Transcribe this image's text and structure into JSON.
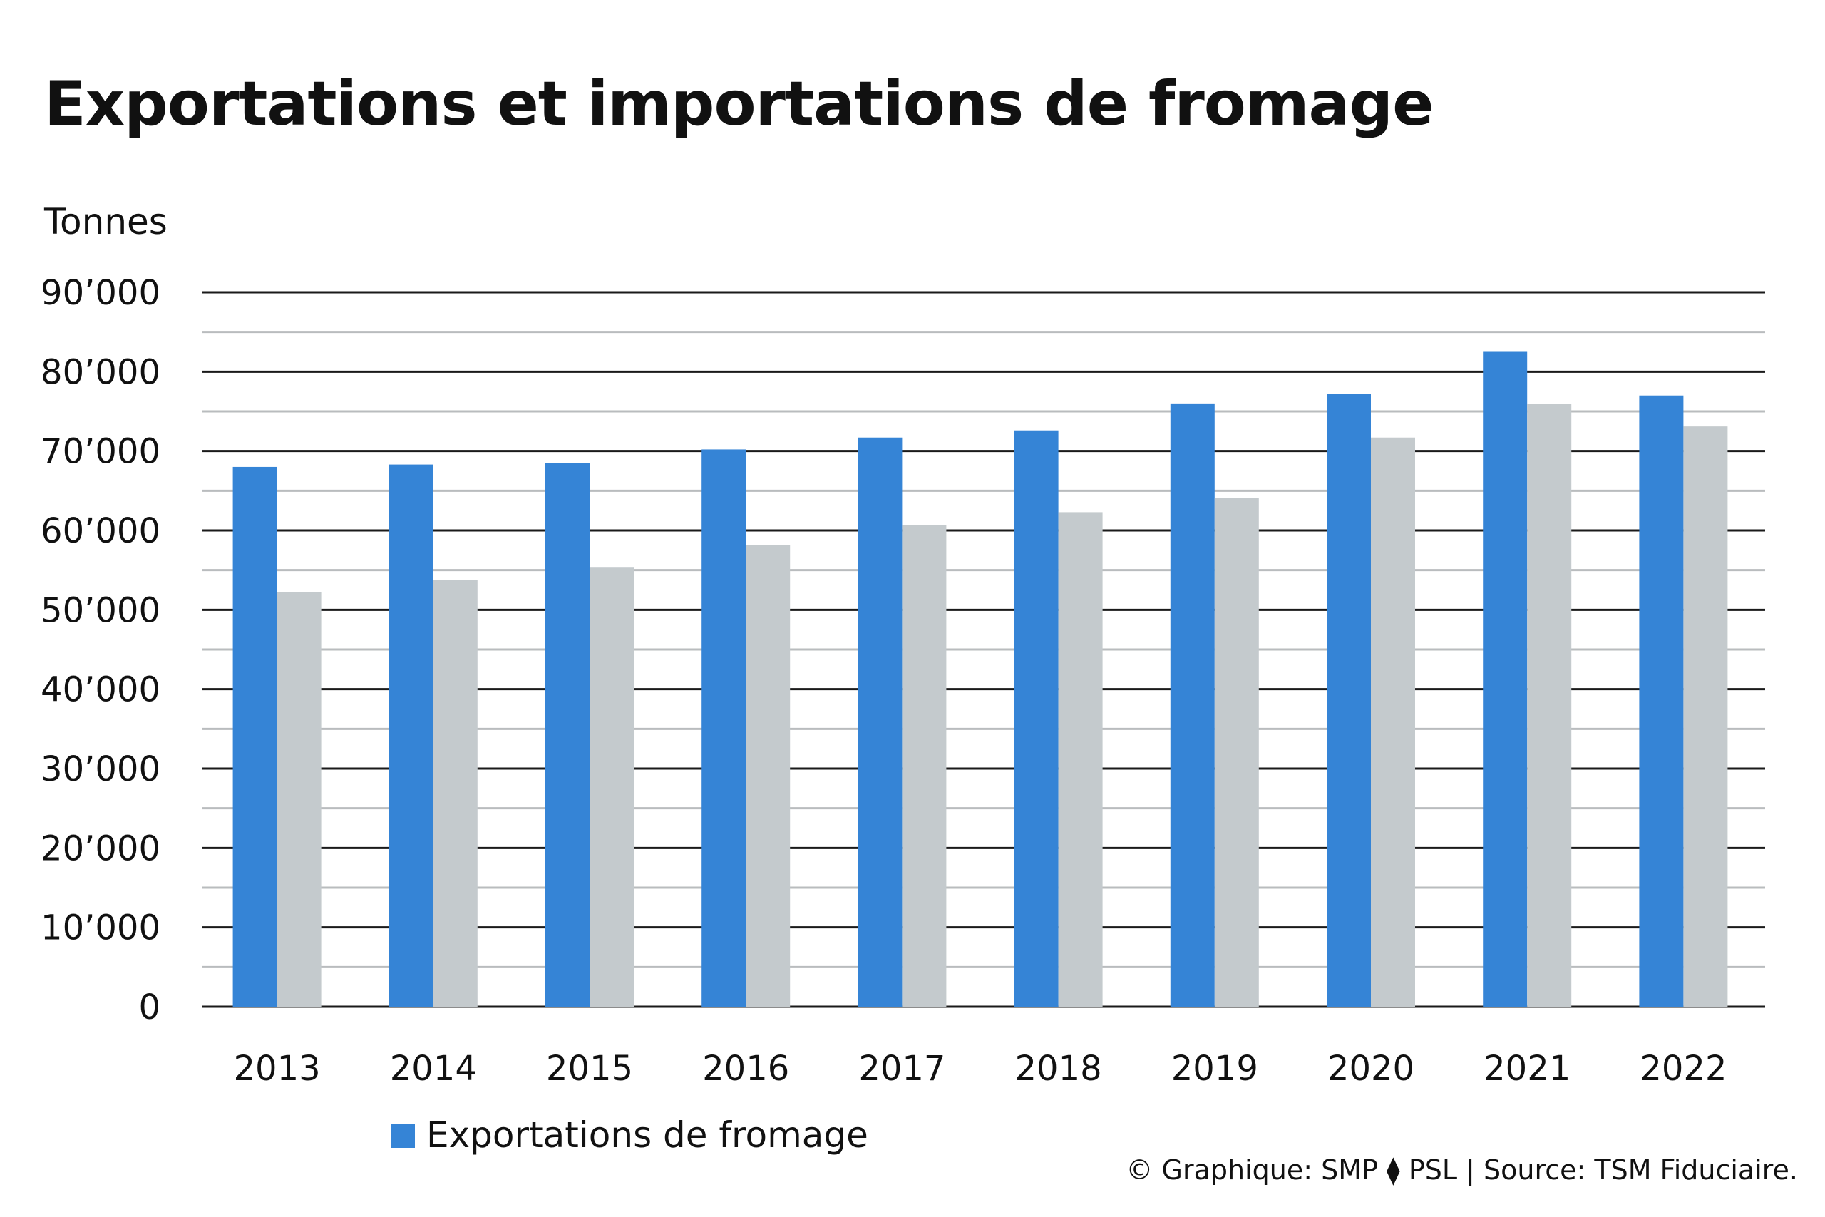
{
  "chart_data": {
    "type": "bar",
    "title": "Exportations et importations de fromage",
    "ylabel": "Tonnes",
    "xlabel": "",
    "categories": [
      "2013",
      "2014",
      "2015",
      "2016",
      "2017",
      "2018",
      "2019",
      "2020",
      "2021",
      "2022"
    ],
    "series": [
      {
        "name": "Exportations de fromage",
        "color": "#3584d6",
        "values": [
          68000,
          68300,
          68500,
          70200,
          71700,
          72600,
          76000,
          77200,
          82500,
          77000
        ]
      },
      {
        "color": "#c4cacd",
        "values": [
          52200,
          53800,
          55400,
          58200,
          60700,
          62300,
          64100,
          71700,
          75900,
          73100
        ]
      }
    ],
    "ylim": [
      0,
      90000
    ],
    "yticks": [
      0,
      10000,
      20000,
      30000,
      40000,
      50000,
      60000,
      70000,
      80000,
      90000
    ],
    "ytick_labels": [
      "0",
      "10’000",
      "20’000",
      "30’000",
      "40’000",
      "50’000",
      "60’000",
      "70’000",
      "80’000",
      "90’000"
    ],
    "grid": true,
    "legend_position": "bottom-left",
    "source": "© Graphique: SMP ⧫ PSL | Source: TSM Fiduciaire."
  }
}
